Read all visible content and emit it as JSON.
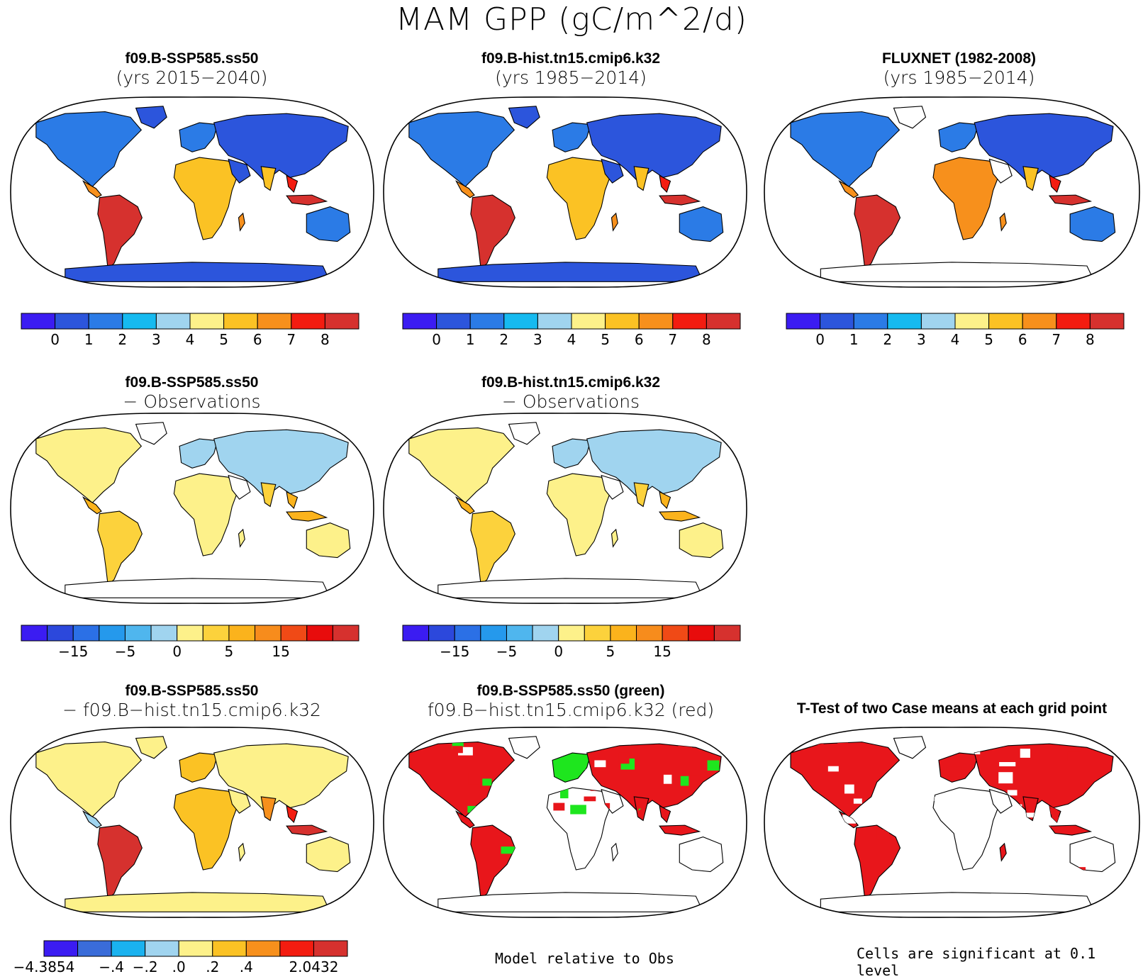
{
  "main_title": "MAM GPP (gC/m^2/d)",
  "panels": [
    {
      "id": "p1",
      "title": "f09.B-SSP585.ss50",
      "subtitle": "(yrs 2015−2040)",
      "kind": "abs",
      "colorbar": "abs"
    },
    {
      "id": "p2",
      "title": "f09.B-hist.tn15.cmip6.k32",
      "subtitle": "(yrs 1985−2014)",
      "kind": "abs",
      "colorbar": "abs"
    },
    {
      "id": "p3",
      "title": "FLUXNET (1982-2008)",
      "subtitle": "(yrs 1985−2014)",
      "kind": "obs",
      "colorbar": "abs"
    },
    {
      "id": "p4",
      "title": "f09.B-SSP585.ss50",
      "subtitle": "− Observations",
      "kind": "diff",
      "colorbar": "diff"
    },
    {
      "id": "p5",
      "title": "f09.B-hist.tn15.cmip6.k32",
      "subtitle": "− Observations",
      "kind": "diff",
      "colorbar": "diff"
    },
    {
      "id": "p6",
      "title": "f09.B-SSP585.ss50",
      "subtitle": "− f09.B−hist.tn15.cmip6.k32",
      "kind": "casediff",
      "colorbar": "casediff"
    },
    {
      "id": "p7",
      "title": "f09.B-SSP585.ss50 (green)",
      "subtitle": "f09.B−hist.tn15.cmip6.k32 (red)",
      "kind": "relative"
    },
    {
      "id": "p8",
      "title": "T-Test of two Case means at each grid point",
      "subtitle": "",
      "kind": "ttest"
    }
  ],
  "colorbars": {
    "abs": {
      "colors": [
        "#3b1cf2",
        "#2c55dc",
        "#2b7be6",
        "#16baf0",
        "#a0d4ef",
        "#fdf18a",
        "#fbc224",
        "#f7901c",
        "#f31c10",
        "#d6312e"
      ],
      "labels": [
        "0",
        "1",
        "2",
        "3",
        "4",
        "5",
        "6",
        "7",
        "8"
      ]
    },
    "diff": {
      "colors": [
        "#3b1cf2",
        "#2c48dc",
        "#2b70e6",
        "#2599ec",
        "#4fb6ee",
        "#a0d4ef",
        "#fdf18a",
        "#fcd23c",
        "#fbb31c",
        "#f78c1c",
        "#f04a16",
        "#e80c0c",
        "#d6312e"
      ],
      "labels": [
        "−15",
        "−5",
        "0",
        "5",
        "15"
      ]
    },
    "casediff": {
      "colors": [
        "#3b1cf2",
        "#3a6cd9",
        "#1ab2ef",
        "#a0d4ef",
        "#fdf18a",
        "#fbc224",
        "#f7901c",
        "#f31c10",
        "#d6312e"
      ],
      "labels": [
        "−4.3854",
        "−.4",
        "−.2",
        ".0",
        ".2",
        ".4",
        "2.0432"
      ]
    }
  },
  "notes": {
    "relative": "Model relative to Obs",
    "significance": "Cells are significant at 0.1 level"
  }
}
